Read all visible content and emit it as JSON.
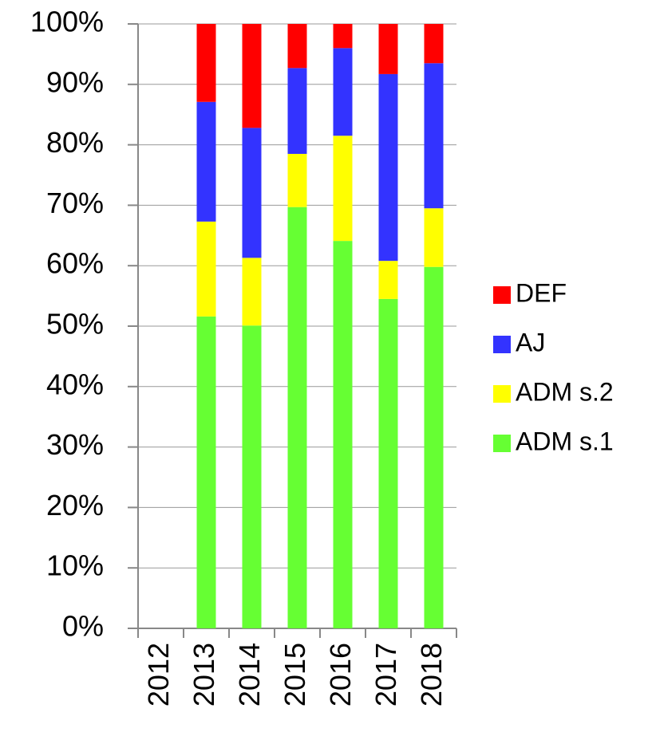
{
  "chart_data": {
    "type": "stacked_bar",
    "categories": [
      "2012",
      "2013",
      "2014",
      "2015",
      "2016",
      "2017",
      "2018"
    ],
    "series": [
      {
        "name": "ADM s.1",
        "color": "#66ff33",
        "values": [
          null,
          51.6,
          50.1,
          69.7,
          64.1,
          54.5,
          59.8
        ]
      },
      {
        "name": "ADM s.2",
        "color": "#ffff00",
        "values": [
          null,
          15.7,
          11.2,
          8.8,
          17.4,
          6.3,
          9.7
        ]
      },
      {
        "name": "AJ",
        "color": "#3333ff",
        "values": [
          null,
          19.8,
          21.5,
          14.2,
          14.5,
          30.9,
          24.0
        ]
      },
      {
        "name": "DEF",
        "color": "#ff0000",
        "values": [
          null,
          12.9,
          17.2,
          7.3,
          4.0,
          8.3,
          6.5
        ]
      }
    ],
    "ylim": [
      0,
      100
    ],
    "yticks": [
      {
        "value": 0,
        "label": "0%"
      },
      {
        "value": 10,
        "label": "10%"
      },
      {
        "value": 20,
        "label": "20%"
      },
      {
        "value": 30,
        "label": "30%"
      },
      {
        "value": 40,
        "label": "40%"
      },
      {
        "value": 50,
        "label": "50%"
      },
      {
        "value": 60,
        "label": "60%"
      },
      {
        "value": 70,
        "label": "70%"
      },
      {
        "value": 80,
        "label": "80%"
      },
      {
        "value": 90,
        "label": "90%"
      },
      {
        "value": 100,
        "label": "100%"
      }
    ],
    "grid": true,
    "legend": "right"
  }
}
